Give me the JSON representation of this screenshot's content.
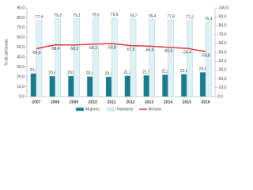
{
  "chart_data": {
    "type": "bar-line",
    "categories": [
      "2007",
      "2008",
      "2009",
      "2010",
      "2011",
      "2012",
      "2013",
      "2014",
      "2015",
      "2016"
    ],
    "y_label": "% de personas",
    "series": [
      {
        "name": "Mujeres",
        "type": "bar",
        "color": "#1b7b8c",
        "values": [
          23.4,
          20.8,
          20.9,
          20.4,
          20.1,
          21.2,
          21.5,
          22.2,
          22.8,
          24.6
        ],
        "value_labels": [
          "23,4",
          "20,8",
          "20,9",
          "20,4",
          "20,1",
          "21,2",
          "21,5",
          "22,2",
          "22,8",
          "24,6"
        ]
      },
      {
        "name": "Hombres",
        "type": "bar",
        "color": "#dff1f4",
        "values": [
          77.4,
          79.2,
          79.1,
          79.6,
          79.9,
          78.7,
          78.4,
          77.8,
          77.2,
          75.4
        ],
        "value_labels": [
          "77,4",
          "79,2",
          "79,1",
          "79,6",
          "79,9",
          "78,7",
          "78,4",
          "77,8",
          "77,2",
          "75,4"
        ]
      },
      {
        "name": "Brecha",
        "type": "line",
        "axis": "y2",
        "color": "#e03a3a",
        "values": [
          -54.0,
          -58.4,
          -58.2,
          -59.2,
          -59.8,
          -57.5,
          -56.9,
          -55.6,
          -54.4,
          -50.8
        ],
        "value_labels": [
          "-54,0",
          "-58,4",
          "-58,2",
          "-59,2",
          "-59,8",
          "-57,5",
          "-56,9",
          "-55,6",
          "-54,4",
          "-50,8"
        ]
      }
    ],
    "ylim": [
      0,
      90
    ],
    "yticks": [
      {
        "value": 0,
        "label": "0,0"
      },
      {
        "value": 10,
        "label": "10,0"
      },
      {
        "value": 20,
        "label": "20,0"
      },
      {
        "value": 30,
        "label": "30,0"
      },
      {
        "value": 40,
        "label": "40,0"
      },
      {
        "value": 50,
        "label": "50,0"
      },
      {
        "value": 60,
        "label": "60,0"
      },
      {
        "value": 70,
        "label": "70,0"
      },
      {
        "value": 80,
        "label": "80,0"
      },
      {
        "value": 90,
        "label": "90,0"
      }
    ],
    "y2lim": [
      0,
      -100
    ],
    "y2ticks": [
      {
        "value": 0,
        "label": "0,0"
      },
      {
        "value": -10,
        "label": "-10,0"
      },
      {
        "value": -20,
        "label": "-20,0"
      },
      {
        "value": -30,
        "label": "-30,0"
      },
      {
        "value": -40,
        "label": "-40,0"
      },
      {
        "value": -50,
        "label": "-50,0"
      },
      {
        "value": -60,
        "label": "-60,0"
      },
      {
        "value": -70,
        "label": "-70,0"
      },
      {
        "value": -80,
        "label": "-80,0"
      },
      {
        "value": -90,
        "label": "-90,0"
      },
      {
        "value": -100,
        "label": "-100,0"
      }
    ]
  }
}
